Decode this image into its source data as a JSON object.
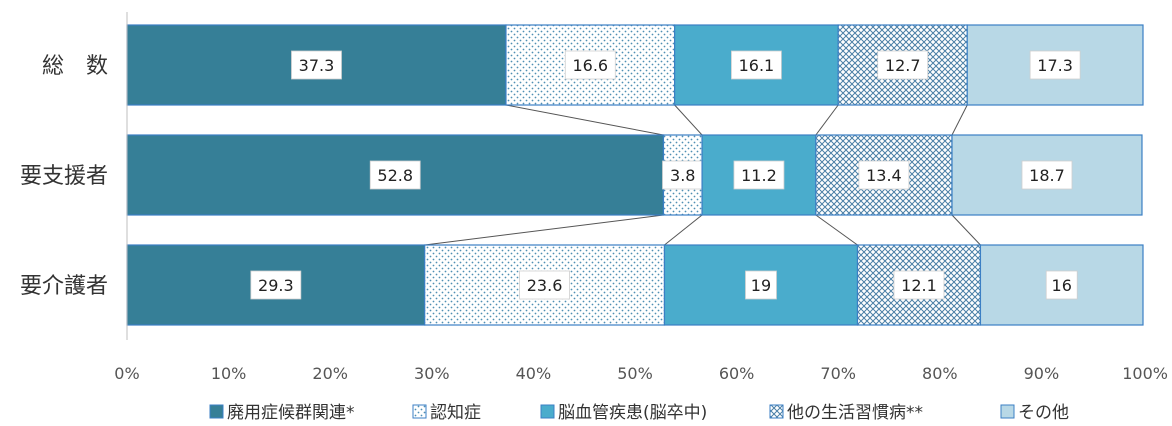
{
  "chart_data": {
    "type": "bar",
    "orientation": "horizontal",
    "stacked": "percent",
    "categories": [
      "総 数",
      "要支援者",
      "要介護者"
    ],
    "series": [
      {
        "name": "廃用症候群関連*",
        "values": [
          37.3,
          52.8,
          29.3
        ],
        "color": "#367f97",
        "pattern": "solid"
      },
      {
        "name": "認知症",
        "values": [
          16.6,
          3.8,
          23.6
        ],
        "color": "#6fa8c7",
        "pattern": "dots"
      },
      {
        "name": "脳血管疾患(脳卒中)",
        "values": [
          16.1,
          11.2,
          19
        ],
        "color": "#4aaccc",
        "pattern": "solid"
      },
      {
        "name": "他の生活習慣病**",
        "values": [
          12.7,
          13.4,
          12.1
        ],
        "color": "#5a8fb5",
        "pattern": "crosshatch"
      },
      {
        "name": "その他",
        "values": [
          17.3,
          18.7,
          16
        ],
        "color": "#b8d8e6",
        "pattern": "solid"
      }
    ],
    "x_ticks": [
      "0%",
      "10%",
      "20%",
      "30%",
      "40%",
      "50%",
      "60%",
      "70%",
      "80%",
      "90%",
      "100%"
    ],
    "xlim": [
      0,
      100
    ],
    "legend": "bottom",
    "series_lines": true,
    "grid": false
  }
}
